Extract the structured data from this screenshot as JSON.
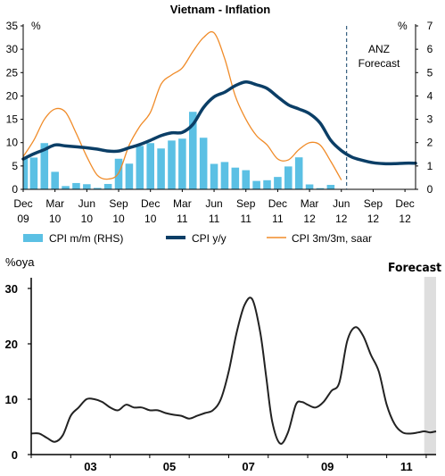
{
  "chart_data": [
    {
      "type": "bar",
      "title": "Vietnam - Inflation",
      "left_axis_unit": "%",
      "right_axis_unit": "%",
      "ylim_left": [
        0,
        35
      ],
      "ylim_right": [
        0,
        7
      ],
      "yticks_left": [
        "0",
        "5",
        "10",
        "15",
        "20",
        "25",
        "30",
        "35"
      ],
      "yticks_right": [
        "0",
        "1",
        "2",
        "3",
        "4",
        "5",
        "6",
        "7"
      ],
      "xtick_labels": [
        [
          "Dec",
          "09"
        ],
        [
          "Mar",
          "10"
        ],
        [
          "Jun",
          "10"
        ],
        [
          "Sep",
          "10"
        ],
        [
          "Dec",
          "10"
        ],
        [
          "Mar",
          "11"
        ],
        [
          "Jun",
          "11"
        ],
        [
          "Sep",
          "11"
        ],
        [
          "Dec",
          "11"
        ],
        [
          "Mar",
          "12"
        ],
        [
          "Jun",
          "12"
        ],
        [
          "Sep",
          "12"
        ],
        [
          "Dec",
          "12"
        ]
      ],
      "forecast_label_line1": "ANZ",
      "forecast_label_line2": "Forecast",
      "forecast_start_index": 30.5,
      "legend": {
        "placement": "bottom",
        "entries": [
          "CPI m/m (RHS)",
          "CPI y/y",
          "CPI 3m/3m, saar"
        ]
      },
      "series": [
        {
          "name": "CPI m/m (RHS)",
          "axis": "right",
          "kind": "bar",
          "color": "#5bc0e4",
          "values": [
            1.4,
            1.36,
            1.98,
            0.75,
            0.14,
            0.27,
            0.22,
            0.06,
            0.23,
            1.31,
            1.1,
            1.86,
            1.98,
            1.75,
            2.09,
            2.17,
            3.32,
            2.21,
            1.09,
            1.17,
            0.93,
            0.82,
            0.36,
            0.39,
            0.53,
            0.98,
            1.37,
            0.21,
            0.05,
            0.19
          ]
        },
        {
          "name": "CPI y/y",
          "axis": "left",
          "kind": "line",
          "color": "#0b3e66",
          "values": [
            6.5,
            7.6,
            8.5,
            9.5,
            9.3,
            9.1,
            8.9,
            8.6,
            8.2,
            8.2,
            8.9,
            9.6,
            10.5,
            11.5,
            12.1,
            12.2,
            13.9,
            17.5,
            19.8,
            20.8,
            22.2,
            23.0,
            22.4,
            21.6,
            19.8,
            18.1,
            17.2,
            16.2,
            14.2,
            10.5,
            8.3,
            6.9,
            6.2,
            5.7,
            5.5,
            5.5,
            5.6,
            5.6
          ]
        },
        {
          "name": "CPI 3m/3m, saar",
          "axis": "left",
          "kind": "line",
          "color": "#f08b28",
          "values": [
            7.0,
            10.5,
            15.0,
            17.2,
            16.5,
            12.0,
            7.0,
            3.0,
            2.2,
            3.5,
            9.5,
            13.5,
            16.5,
            22.5,
            24.5,
            26.0,
            29.5,
            32.5,
            33.5,
            28.0,
            20.0,
            15.0,
            11.5,
            9.5,
            6.5,
            6.3,
            8.5,
            10.0,
            9.5,
            6.0,
            2.0
          ]
        }
      ]
    },
    {
      "type": "line",
      "ylabel": "%oya",
      "forecast_label": "Forecast",
      "ylim": [
        0,
        30
      ],
      "yticks": [
        "0",
        "10",
        "20",
        "30"
      ],
      "xtick_labels": [
        "03",
        "05",
        "07",
        "09",
        "11"
      ],
      "xlim": [
        2002.0,
        2012.25
      ],
      "forecast_start": 2011.95,
      "series": [
        {
          "color": "#222222",
          "x": [
            2002.0,
            2002.2,
            2002.4,
            2002.6,
            2002.8,
            2003.0,
            2003.2,
            2003.4,
            2003.6,
            2003.8,
            2004.0,
            2004.2,
            2004.4,
            2004.6,
            2004.8,
            2005.0,
            2005.2,
            2005.4,
            2005.6,
            2005.8,
            2006.0,
            2006.2,
            2006.4,
            2006.6,
            2006.8,
            2007.0,
            2007.2,
            2007.4,
            2007.6,
            2007.8,
            2007.95,
            2008.1,
            2008.3,
            2008.5,
            2008.7,
            2008.85,
            2009.0,
            2009.2,
            2009.4,
            2009.6,
            2009.8,
            2010.0,
            2010.2,
            2010.4,
            2010.6,
            2010.8,
            2011.0,
            2011.2,
            2011.4,
            2011.6,
            2011.8,
            2011.95,
            2012.1,
            2012.25
          ],
          "y": [
            3.8,
            3.8,
            3.0,
            2.3,
            3.5,
            7.0,
            8.5,
            10.0,
            10.0,
            9.5,
            8.5,
            8.0,
            9.0,
            8.5,
            8.5,
            8.0,
            8.0,
            7.5,
            7.2,
            7.0,
            6.5,
            7.0,
            7.5,
            8.0,
            10.0,
            15.0,
            22.0,
            27.0,
            28.0,
            22.0,
            14.0,
            6.0,
            2.0,
            4.0,
            9.0,
            9.5,
            9.0,
            8.5,
            9.5,
            11.5,
            13.0,
            20.5,
            23.0,
            21.5,
            18.0,
            15.0,
            9.0,
            5.5,
            4.0,
            3.8,
            4.0,
            4.2,
            4.0,
            4.2
          ]
        }
      ]
    }
  ]
}
